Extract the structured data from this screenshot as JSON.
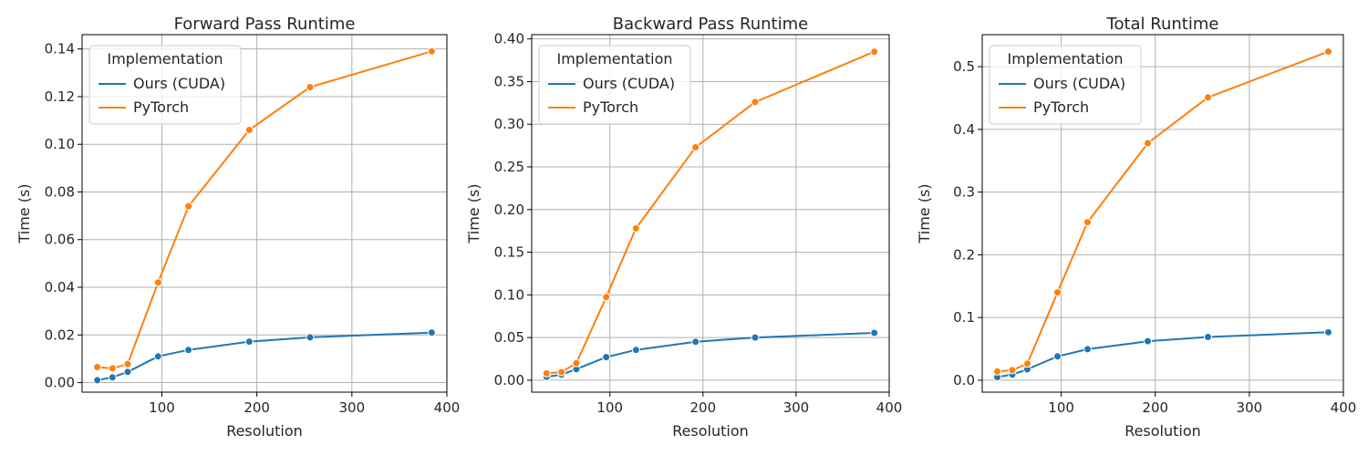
{
  "colors": {
    "ours_cuda": "#1f77b4",
    "pytorch": "#ff7f0e"
  },
  "chart_data": [
    {
      "type": "line",
      "title": "Forward Pass Runtime",
      "xlabel": "Resolution",
      "ylabel": "Time (s)",
      "xlim": [
        16,
        400
      ],
      "ylim": [
        -0.004,
        0.146
      ],
      "xticks": [
        100,
        200,
        300,
        400
      ],
      "yticks": [
        0.0,
        0.02,
        0.04,
        0.06,
        0.08,
        0.1,
        0.12,
        0.14
      ],
      "ytick_labels": [
        "0.00",
        "0.02",
        "0.04",
        "0.06",
        "0.08",
        "0.10",
        "0.12",
        "0.14"
      ],
      "grid": true,
      "legend": {
        "title": "Implementation",
        "placement": "top-left"
      },
      "x": [
        32,
        48,
        64,
        96,
        128,
        192,
        256,
        384
      ],
      "series": [
        {
          "name": "Ours (CUDA)",
          "color": "#1f77b4",
          "values": [
            0.001,
            0.0022,
            0.0045,
            0.011,
            0.0137,
            0.0172,
            0.019,
            0.021
          ]
        },
        {
          "name": "PyTorch",
          "color": "#ff7f0e",
          "values": [
            0.0065,
            0.006,
            0.0078,
            0.042,
            0.074,
            0.106,
            0.124,
            0.139
          ]
        }
      ]
    },
    {
      "type": "line",
      "title": "Backward Pass Runtime",
      "xlabel": "Resolution",
      "ylabel": "Time (s)",
      "xlim": [
        16,
        400
      ],
      "ylim": [
        -0.014,
        0.405
      ],
      "xticks": [
        100,
        200,
        300,
        400
      ],
      "yticks": [
        0.0,
        0.05,
        0.1,
        0.15,
        0.2,
        0.25,
        0.3,
        0.35,
        0.4
      ],
      "ytick_labels": [
        "0.00",
        "0.05",
        "0.10",
        "0.15",
        "0.20",
        "0.25",
        "0.30",
        "0.35",
        "0.40"
      ],
      "grid": true,
      "legend": {
        "title": "Implementation",
        "placement": "top-left"
      },
      "x": [
        32,
        48,
        64,
        96,
        128,
        192,
        256,
        384
      ],
      "series": [
        {
          "name": "Ours (CUDA)",
          "color": "#1f77b4",
          "values": [
            0.004,
            0.0065,
            0.013,
            0.027,
            0.0355,
            0.045,
            0.05,
            0.0555
          ]
        },
        {
          "name": "PyTorch",
          "color": "#ff7f0e",
          "values": [
            0.008,
            0.0095,
            0.02,
            0.0975,
            0.178,
            0.273,
            0.326,
            0.385
          ]
        }
      ]
    },
    {
      "type": "line",
      "title": "Total Runtime",
      "xlabel": "Resolution",
      "ylabel": "Time (s)",
      "xlim": [
        16,
        400
      ],
      "ylim": [
        -0.019,
        0.551
      ],
      "xticks": [
        100,
        200,
        300,
        400
      ],
      "yticks": [
        0.0,
        0.1,
        0.2,
        0.3,
        0.4,
        0.5
      ],
      "ytick_labels": [
        "0.0",
        "0.1",
        "0.2",
        "0.3",
        "0.4",
        "0.5"
      ],
      "grid": true,
      "legend": {
        "title": "Implementation",
        "placement": "top-left"
      },
      "x": [
        32,
        48,
        64,
        96,
        128,
        192,
        256,
        384
      ],
      "series": [
        {
          "name": "Ours (CUDA)",
          "color": "#1f77b4",
          "values": [
            0.005,
            0.009,
            0.0175,
            0.038,
            0.0495,
            0.0622,
            0.069,
            0.0765
          ]
        },
        {
          "name": "PyTorch",
          "color": "#ff7f0e",
          "values": [
            0.014,
            0.016,
            0.0265,
            0.14,
            0.252,
            0.378,
            0.451,
            0.524
          ]
        }
      ]
    }
  ]
}
